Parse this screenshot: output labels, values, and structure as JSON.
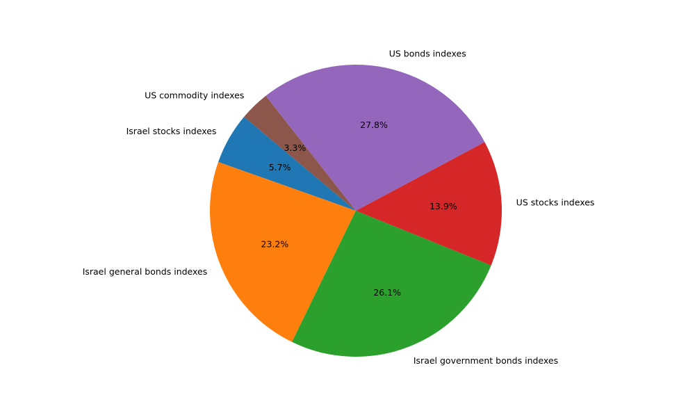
{
  "chart_data": {
    "type": "pie",
    "title": "",
    "start_angle_deg": 140,
    "direction": "counterclockwise",
    "slices": [
      {
        "label": "Israel stocks indexes",
        "value": 5.7,
        "pct_label": "5.7%",
        "color": "#1f77b4"
      },
      {
        "label": "Israel general bonds indexes",
        "value": 23.2,
        "pct_label": "23.2%",
        "color": "#ff7f0e"
      },
      {
        "label": "Israel government bonds indexes",
        "value": 26.1,
        "pct_label": "26.1%",
        "color": "#2ca02c"
      },
      {
        "label": "US stocks indexes",
        "value": 13.9,
        "pct_label": "13.9%",
        "color": "#d62728"
      },
      {
        "label": "US bonds indexes",
        "value": 27.8,
        "pct_label": "27.8%",
        "color": "#9467bd"
      },
      {
        "label": "US commodity indexes",
        "value": 3.3,
        "pct_label": "3.3%",
        "color": "#8c564b"
      }
    ]
  }
}
